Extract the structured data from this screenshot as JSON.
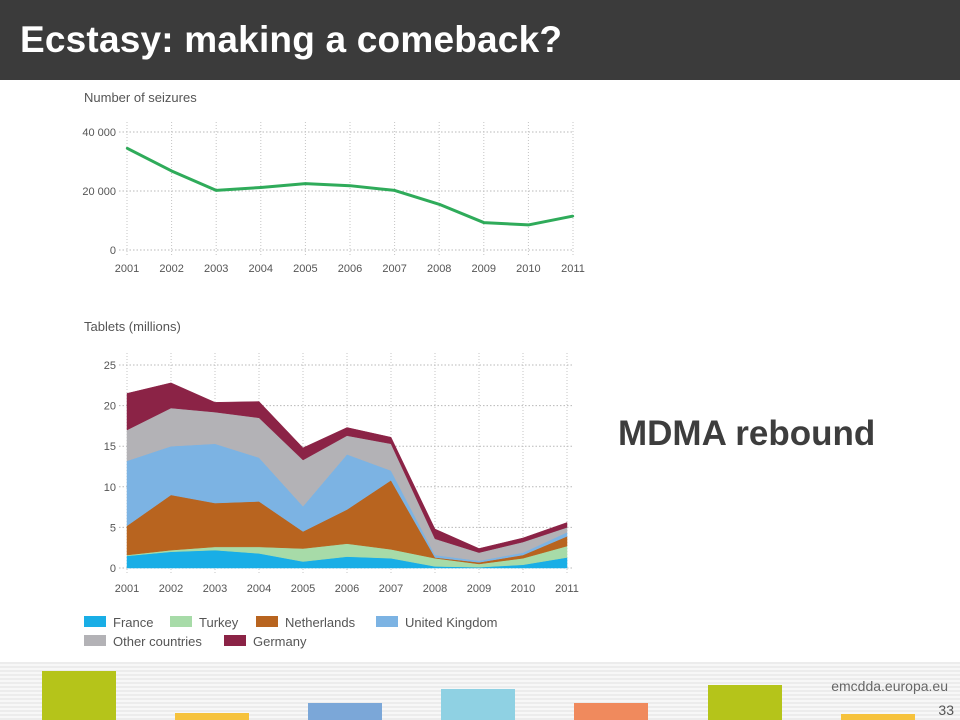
{
  "slide": {
    "title": "Ecstasy: making a comeback?",
    "callout": "MDMA rebound",
    "footer_site": "emcdda.europa.eu",
    "page_number": "33",
    "footer_colors": [
      "#b5c41a",
      "#f6c23c",
      "#7ba7d8",
      "#8fd1e3",
      "#f08a5d",
      "#b5c41a",
      "#f6c23c"
    ]
  },
  "chart_data": [
    {
      "type": "line",
      "title": "",
      "ylabel": "Number of seizures",
      "xlabel": "",
      "ylim": [
        0,
        40000
      ],
      "yticks": [
        "0",
        "20 000",
        "40 000"
      ],
      "x": [
        "2001",
        "2002",
        "2003",
        "2004",
        "2005",
        "2006",
        "2007",
        "2008",
        "2009",
        "2010",
        "2011"
      ],
      "series": [
        {
          "values": [
            34500,
            26800,
            20200,
            21200,
            22500,
            21800,
            20200,
            15500,
            9300,
            8500,
            11500
          ],
          "color": "#2fab5a"
        }
      ],
      "grid": true
    },
    {
      "type": "area",
      "stacked": true,
      "title": "",
      "ylabel": "Tablets (millions)",
      "xlabel": "",
      "ylim": [
        0,
        25
      ],
      "yticks": [
        "0",
        "5",
        "10",
        "15",
        "20",
        "25"
      ],
      "x": [
        "2001",
        "2002",
        "2003",
        "2004",
        "2005",
        "2006",
        "2007",
        "2008",
        "2009",
        "2010",
        "2011"
      ],
      "series": [
        {
          "name": "France",
          "color": "#19aee6",
          "values": [
            1.5,
            2.0,
            2.2,
            1.8,
            0.8,
            1.4,
            1.2,
            0.2,
            0.1,
            0.4,
            1.3
          ]
        },
        {
          "name": "Turkey",
          "color": "#a7dba8",
          "values": [
            0.1,
            0.2,
            0.4,
            0.8,
            1.6,
            1.6,
            1.1,
            1.0,
            0.4,
            0.8,
            1.4
          ]
        },
        {
          "name": "Netherlands",
          "color": "#b8641f",
          "values": [
            3.6,
            6.8,
            5.4,
            5.6,
            2.1,
            4.2,
            8.5,
            0.1,
            0.2,
            0.4,
            1.2
          ]
        },
        {
          "name": "United Kingdom",
          "color": "#7cb3e3",
          "values": [
            8.0,
            6.0,
            7.3,
            5.4,
            3.1,
            6.8,
            1.2,
            0.3,
            0.2,
            0.3,
            0.5
          ]
        },
        {
          "name": "Other countries",
          "color": "#b3b2b6",
          "values": [
            3.8,
            4.7,
            3.9,
            4.9,
            5.7,
            2.3,
            3.3,
            2.0,
            1.0,
            1.3,
            0.6
          ]
        },
        {
          "name": "Germany",
          "color": "#8b2346",
          "values": [
            4.5,
            3.1,
            1.2,
            2.0,
            1.5,
            1.0,
            0.8,
            1.2,
            0.5,
            0.5,
            0.6
          ]
        }
      ],
      "legend_position": "bottom",
      "grid": true
    }
  ]
}
